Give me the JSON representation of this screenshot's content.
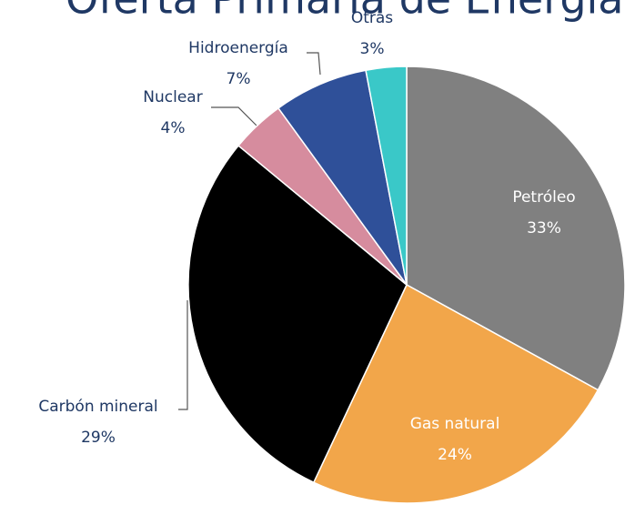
{
  "chart_data": {
    "type": "pie",
    "title": "Oferta Primaria de Energía",
    "categories": [
      "Petróleo",
      "Gas natural",
      "Carbón mineral",
      "Nuclear",
      "Hidroenergía",
      "Otras"
    ],
    "values": [
      33,
      24,
      29,
      4,
      7,
      3
    ],
    "value_labels": [
      "33%",
      "24%",
      "29%",
      "4%",
      "7%",
      "3%"
    ],
    "colors": [
      "#808080",
      "#f2a64a",
      "#000000",
      "#d68c9e",
      "#2f5099",
      "#3ac8c8"
    ]
  }
}
